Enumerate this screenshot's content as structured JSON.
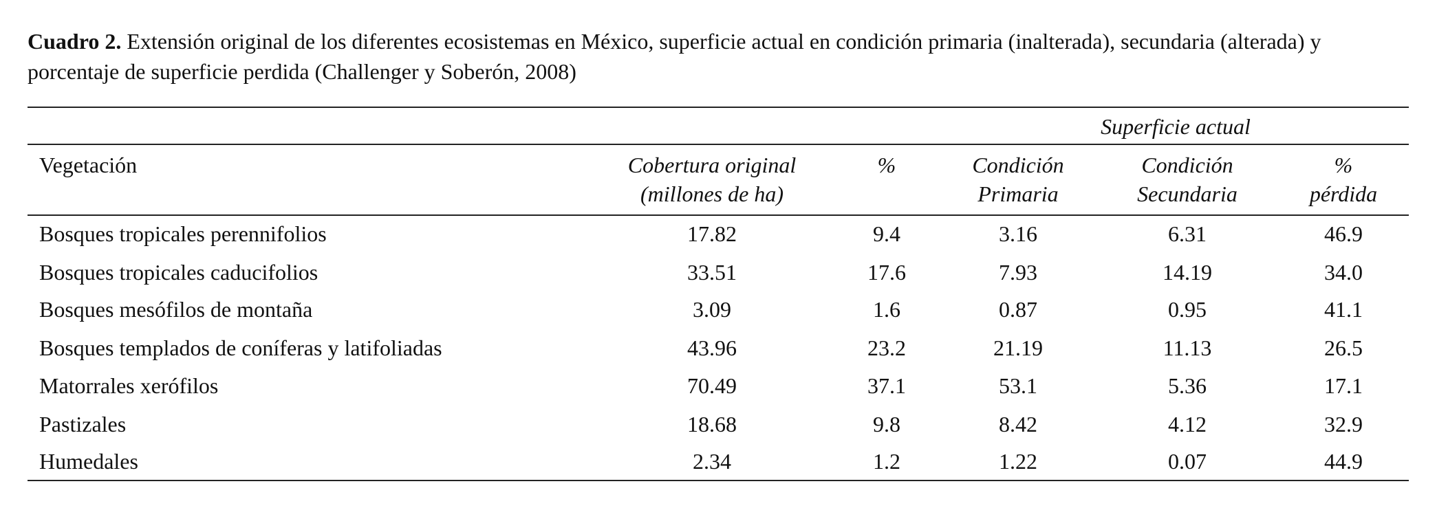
{
  "caption": {
    "label": "Cuadro 2.",
    "text": "Extensión original de los diferentes ecosistemas en México, superficie actual en condición primaria (inalterada), secundaria (alterada) y porcentaje de superficie perdida (Challenger y Soberón, 2008)"
  },
  "table": {
    "group_header": "Superficie actual",
    "columns": [
      [
        "Vegetación"
      ],
      [
        "Cobertura original",
        "(millones de ha)"
      ],
      [
        "%"
      ],
      [
        "Condición",
        "Primaria"
      ],
      [
        "Condición",
        "Secundaria"
      ],
      [
        "%",
        "pérdida"
      ]
    ],
    "rows": [
      [
        "Bosques tropicales perennifolios",
        "17.82",
        "9.4",
        "3.16",
        "6.31",
        "46.9"
      ],
      [
        "Bosques tropicales caducifolios",
        "33.51",
        "17.6",
        "7.93",
        "14.19",
        "34.0"
      ],
      [
        "Bosques mesófilos de montaña",
        "3.09",
        "1.6",
        "0.87",
        "0.95",
        "41.1"
      ],
      [
        "Bosques templados de coníferas y latifoliadas",
        "43.96",
        "23.2",
        "21.19",
        "11.13",
        "26.5"
      ],
      [
        "Matorrales xerófilos",
        "70.49",
        "37.1",
        "53.1",
        "5.36",
        "17.1"
      ],
      [
        "Pastizales",
        "18.68",
        "9.8",
        "8.42",
        "4.12",
        "32.9"
      ],
      [
        "Humedales",
        "2.34",
        "1.2",
        "1.22",
        "0.07",
        "44.9"
      ]
    ]
  }
}
